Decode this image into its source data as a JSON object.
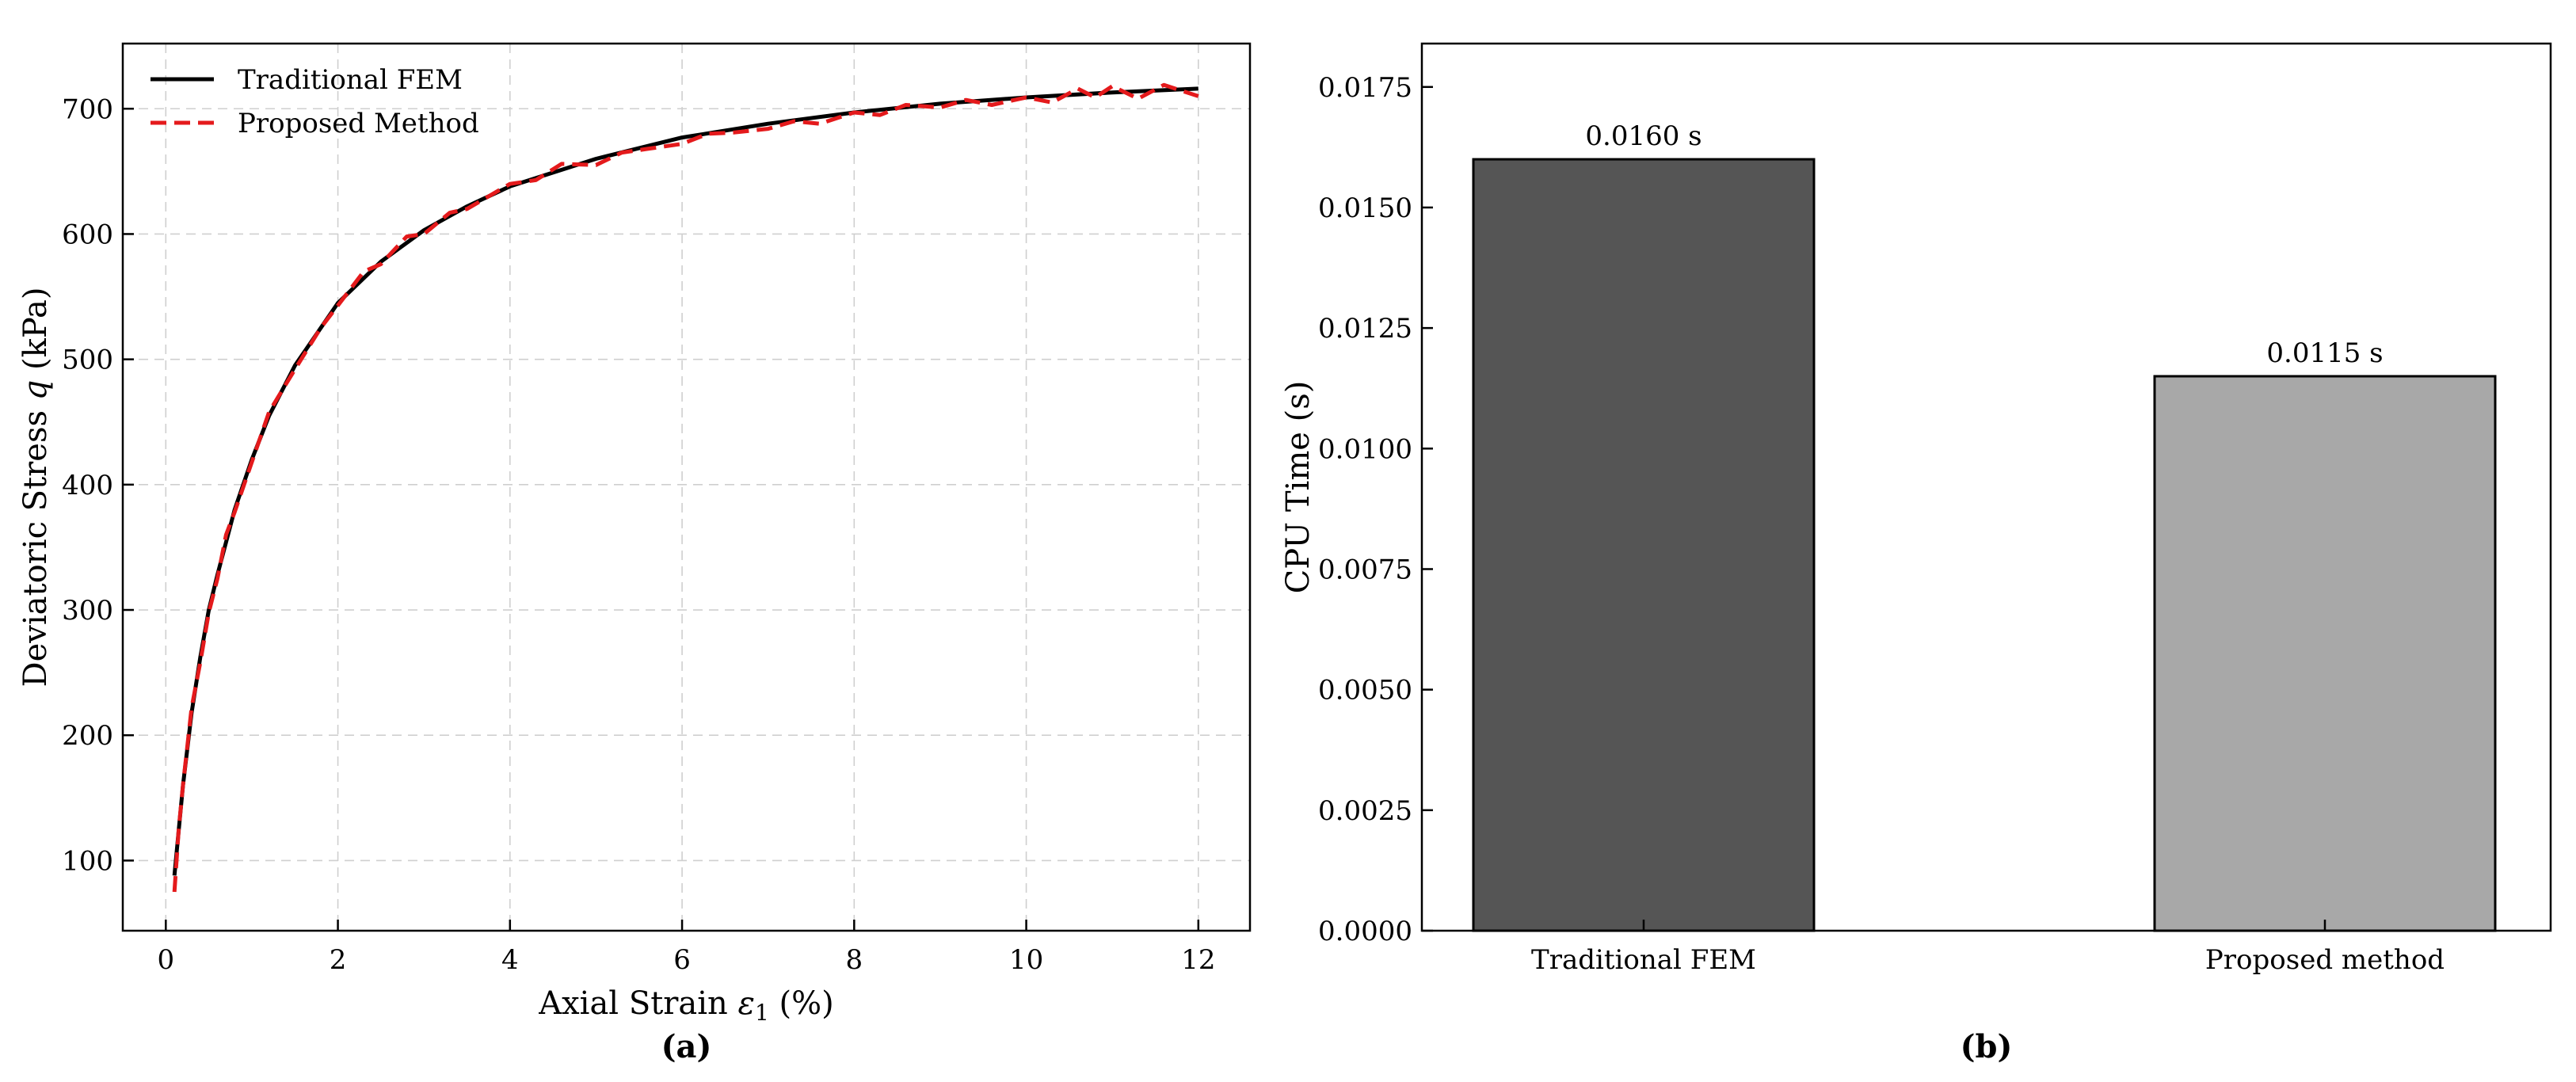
{
  "panels": [
    {
      "label": "(a)"
    },
    {
      "label": "(b)"
    }
  ],
  "chart_data": [
    {
      "type": "line",
      "xlabel_prefix": "Axial Strain ",
      "xlabel_symbol": "ε",
      "xlabel_subscript": "1",
      "xlabel_suffix": " (%)",
      "ylabel_prefix": "Deviatoric Stress ",
      "ylabel_symbol": "q",
      "ylabel_suffix": " (kPa)",
      "xlim": [
        -0.5,
        12.6
      ],
      "ylim": [
        44,
        752
      ],
      "xticks": [
        0,
        2,
        4,
        6,
        8,
        10,
        12
      ],
      "yticks": [
        100,
        200,
        300,
        400,
        500,
        600,
        700
      ],
      "grid": true,
      "legend_position": "top-left",
      "series": [
        {
          "name": "Traditional FEM",
          "color": "#000000",
          "style": "solid",
          "x": [
            0.1,
            0.2,
            0.3,
            0.4,
            0.5,
            0.6,
            0.8,
            1.0,
            1.2,
            1.5,
            2.0,
            2.5,
            3.0,
            3.5,
            4.0,
            5.0,
            6.0,
            7.0,
            8.0,
            9.0,
            10.0,
            11.0,
            12.0
          ],
          "y": [
            88,
            160,
            218,
            262,
            300,
            328,
            380,
            420,
            455,
            495,
            545,
            578,
            603,
            622,
            638,
            660,
            677,
            688,
            697,
            704,
            709,
            713,
            716
          ]
        },
        {
          "name": "Proposed Method",
          "color": "#e41a1c",
          "style": "dashed",
          "x": [
            0.1,
            0.15,
            0.2,
            0.3,
            0.4,
            0.5,
            0.6,
            0.7,
            0.8,
            1.0,
            1.2,
            1.5,
            1.8,
            2.0,
            2.3,
            2.5,
            2.8,
            3.0,
            3.3,
            3.5,
            3.8,
            4.0,
            4.3,
            4.6,
            5.0,
            5.3,
            5.6,
            6.0,
            6.3,
            6.6,
            7.0,
            7.3,
            7.6,
            8.0,
            8.3,
            8.6,
            9.0,
            9.3,
            9.6,
            10.0,
            10.3,
            10.6,
            10.8,
            11.0,
            11.3,
            11.6,
            12.0
          ],
          "y": [
            75,
            125,
            160,
            222,
            258,
            298,
            325,
            360,
            378,
            418,
            458,
            492,
            525,
            543,
            570,
            576,
            598,
            600,
            617,
            620,
            632,
            640,
            643,
            656,
            655,
            665,
            668,
            672,
            680,
            681,
            684,
            690,
            688,
            697,
            695,
            703,
            701,
            707,
            703,
            709,
            705,
            716,
            709,
            718,
            708,
            719,
            710
          ]
        }
      ]
    },
    {
      "type": "bar",
      "ylabel": "CPU Time (s)",
      "ylim": [
        0,
        0.0184
      ],
      "yticks": [
        "0.0000",
        "0.0025",
        "0.0050",
        "0.0075",
        "0.0100",
        "0.0125",
        "0.0150",
        "0.0175"
      ],
      "grid": false,
      "categories": [
        "Traditional FEM",
        "Proposed method"
      ],
      "values": [
        0.016,
        0.0115
      ],
      "value_labels": [
        "0.0160 s",
        "0.0115 s"
      ],
      "colors": [
        "#555555",
        "#a8a8a8"
      ]
    }
  ]
}
